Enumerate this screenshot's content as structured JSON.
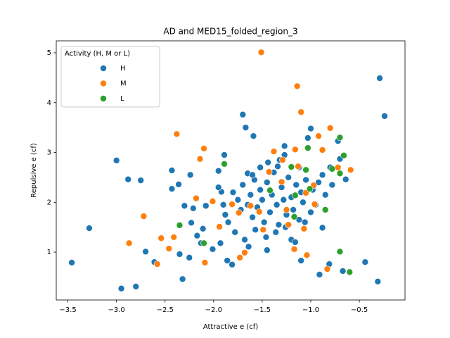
{
  "chart_data": {
    "type": "scatter",
    "title": "AD and MED15_folded_region_3",
    "x_label": "Attractive e (cf)",
    "y_label": "Repulsive e (cf)",
    "legend_title": "Activity (H, M or L)",
    "legend": "upper left",
    "grid": false,
    "xlim": [
      -3.62,
      -0.03
    ],
    "ylim": [
      0.04,
      5.24
    ],
    "xticks": [
      {
        "value": -3.5,
        "label": "−3.5"
      },
      {
        "value": -3.0,
        "label": "−3.0"
      },
      {
        "value": -2.5,
        "label": "−2.5"
      },
      {
        "value": -2.0,
        "label": "−2.0"
      },
      {
        "value": -1.5,
        "label": "−1.5"
      },
      {
        "value": -1.0,
        "label": "−1.0"
      },
      {
        "value": -0.5,
        "label": "−0.5"
      }
    ],
    "yticks": [
      1,
      2,
      3,
      4,
      5
    ],
    "series": [
      {
        "name": "H",
        "color": "#1f77b4",
        "x": [
          -3.46,
          -3.28,
          -3.0,
          -2.95,
          -2.88,
          -2.8,
          -2.75,
          -2.7,
          -2.61,
          -2.43,
          -2.43,
          -2.36,
          -2.32,
          -2.35,
          -2.3,
          -2.24,
          -2.25,
          -2.17,
          -2.21,
          -2.23,
          -2.13,
          -2.11,
          -2.08,
          -2.01,
          -1.95,
          -1.89,
          -1.92,
          -1.88,
          -1.93,
          -1.86,
          -1.81,
          -1.7,
          -1.67,
          -1.59,
          -1.65,
          -0.29,
          -0.24,
          -0.31,
          -0.44,
          -0.67,
          -0.7,
          -0.64,
          -0.72,
          -0.91,
          -0.81,
          -0.88,
          -1.0,
          -1.03,
          -1.27,
          -1.1,
          -1.2,
          -1.45,
          -1.64,
          -1.34,
          -1.8,
          -1.75,
          -1.72,
          -1.7,
          -1.65,
          -1.62,
          -1.6,
          -1.58,
          -1.55,
          -1.52,
          -1.5,
          -1.48,
          -1.45,
          -1.42,
          -1.4,
          -1.38,
          -1.35,
          -1.33,
          -1.3,
          -1.28,
          -1.25,
          -1.23,
          -1.2,
          -1.18,
          -1.15,
          -1.12,
          -1.1,
          -1.08,
          -1.05,
          -0.98,
          -0.95,
          -0.92,
          -0.88,
          -0.85,
          -1.85,
          -1.9,
          -1.95,
          -1.78,
          -1.68,
          -1.57,
          -1.46,
          -1.36,
          -1.26,
          -1.16,
          -1.06,
          -1.0,
          -1.32,
          -1.27,
          -1.44,
          -1.52,
          -1.6,
          -1.12,
          -0.8,
          -0.78
        ],
        "values": [
          0.79,
          1.48,
          2.84,
          0.27,
          2.46,
          0.31,
          2.44,
          1.01,
          0.8,
          2.64,
          2.27,
          2.36,
          0.46,
          0.96,
          1.93,
          2.55,
          0.89,
          1.33,
          1.88,
          1.59,
          1.18,
          1.47,
          1.93,
          1.06,
          2.63,
          2.95,
          2.21,
          1.75,
          1.18,
          0.83,
          0.75,
          3.76,
          3.5,
          3.33,
          2.58,
          4.49,
          3.73,
          0.41,
          0.8,
          0.62,
          2.87,
          2.46,
          3.23,
          0.55,
          0.76,
          1.49,
          3.48,
          3.29,
          3.13,
          0.83,
          1.25,
          1.04,
          1.11,
          2.72,
          2.2,
          2.05,
          1.85,
          2.35,
          1.95,
          2.15,
          1.7,
          2.45,
          1.9,
          2.25,
          2.05,
          1.6,
          2.4,
          1.8,
          2.15,
          2.6,
          1.95,
          1.55,
          2.3,
          2.05,
          1.75,
          2.5,
          2.1,
          1.85,
          2.35,
          1.65,
          2.2,
          2.0,
          2.45,
          2.25,
          1.95,
          2.4,
          2.55,
          2.15,
          1.6,
          1.95,
          2.3,
          1.4,
          1.25,
          1.45,
          1.3,
          1.4,
          1.5,
          1.2,
          1.6,
          1.8,
          2.85,
          2.95,
          2.8,
          2.7,
          2.55,
          2.7,
          2.7,
          2.35
        ]
      },
      {
        "name": "M",
        "color": "#ff7f0e",
        "x": [
          -1.51,
          -1.14,
          -1.1,
          -2.38,
          -2.1,
          -2.14,
          -0.8,
          -0.92,
          -0.59,
          -2.72,
          -2.87,
          -2.54,
          -2.46,
          -2.58,
          -2.41,
          -2.09,
          -2.18,
          -2.01,
          -0.83,
          -1.04,
          -1.17,
          -1.07,
          -1.68,
          -1.73,
          -1.38,
          -0.97,
          -1.53,
          -1.74,
          -1.49,
          -1.25,
          -1.16,
          -0.88,
          -1.29,
          -1.13,
          -1.43,
          -1.3,
          -1.05,
          -1.23,
          -1.62,
          -1.81,
          -1.94,
          -0.72,
          -0.96
        ],
        "values": [
          5.01,
          4.33,
          3.81,
          3.37,
          3.08,
          2.87,
          3.49,
          3.33,
          2.65,
          1.72,
          1.18,
          1.28,
          1.07,
          0.76,
          1.3,
          0.79,
          2.08,
          2.02,
          0.66,
          0.94,
          1.06,
          1.47,
          0.99,
          0.89,
          3.02,
          2.34,
          1.81,
          1.79,
          1.45,
          1.85,
          3.06,
          3.05,
          2.85,
          2.72,
          2.61,
          2.41,
          2.19,
          1.55,
          1.93,
          1.96,
          1.51,
          2.7,
          1.96
        ]
      },
      {
        "name": "L",
        "color": "#2ca02c",
        "x": [
          -1.89,
          -2.35,
          -2.1,
          -1.03,
          -0.7,
          -0.66,
          -0.7,
          -0.78,
          -0.85,
          -0.7,
          -0.6,
          -1.05,
          -1.16,
          -1.01,
          -1.2,
          -1.17,
          -1.42
        ],
        "values": [
          2.77,
          1.54,
          1.18,
          3.09,
          3.3,
          2.94,
          2.58,
          2.67,
          1.85,
          1.01,
          0.6,
          2.65,
          2.14,
          2.27,
          2.71,
          1.71,
          2.24
        ]
      }
    ]
  }
}
